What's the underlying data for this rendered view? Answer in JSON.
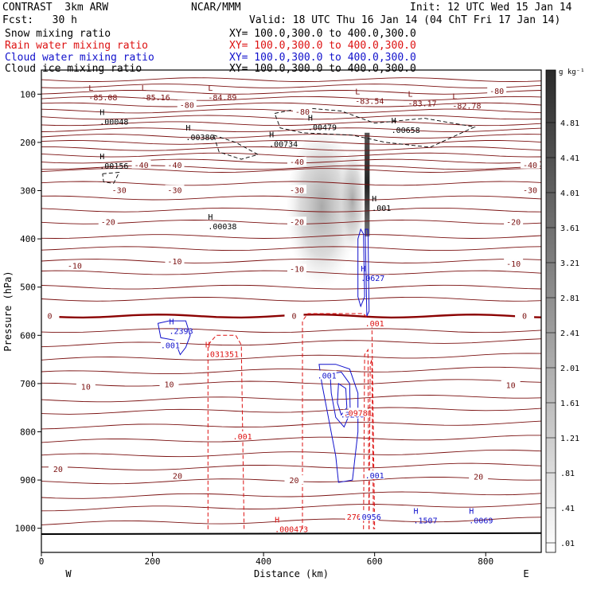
{
  "header": {
    "title": "CONTRAST  3km ARW",
    "org": "NCAR/MMM",
    "init": "Init: 12 UTC Wed 15 Jan 14",
    "fcst": "Fcst:   30 h",
    "valid": "Valid: 18 UTC Thu 16 Jan 14 (04 ChT Fri 17 Jan 14)",
    "fields": [
      {
        "label": "Snow mixing ratio",
        "xy": "XY= 100.0,300.0 to 400.0,300.0",
        "color": "#000000"
      },
      {
        "label": "Rain water mixing ratio",
        "xy": "XY= 100.0,300.0 to 400.0,300.0",
        "color": "#dd1111"
      },
      {
        "label": "Cloud water mixing ratio",
        "xy": "XY= 100.0,300.0 to 400.0,300.0",
        "color": "#1111cc"
      },
      {
        "label": "Cloud ice mixing ratio",
        "xy": "XY= 100.0,300.0 to 400.0,300.0",
        "color": "#000000"
      }
    ]
  },
  "colors": {
    "temperature_contour": "#7a1010",
    "freezing_line": "#8b0000",
    "rain": "#dd1111",
    "cloud_water": "#1111cc",
    "ice": "#000000"
  },
  "chart_data": {
    "type": "heatmap",
    "xlabel": "Distance (km)",
    "ylabel": "Pressure (hPa)",
    "xlim": [
      0,
      900
    ],
    "ylim": [
      1050,
      50
    ],
    "x_ticks": [
      0,
      200,
      400,
      600,
      800
    ],
    "x_tick_labels": [
      "0",
      "200",
      "400",
      "600",
      "800"
    ],
    "y_ticks": [
      100,
      200,
      300,
      400,
      500,
      600,
      700,
      800,
      900,
      1000
    ],
    "y_tick_labels": [
      "100",
      "200",
      "300",
      "400",
      "500",
      "600",
      "700",
      "800",
      "900",
      "1000"
    ],
    "x_end_labels": {
      "left": "W",
      "right": "E"
    },
    "colorbar": {
      "unit": "g kg⁻¹",
      "labels": [
        "4.81",
        "4.41",
        "4.01",
        "3.61",
        "3.21",
        "2.81",
        "2.41",
        "2.01",
        "1.61",
        "1.21",
        ".81",
        ".41",
        ".01"
      ]
    },
    "extremum_labels": [
      {
        "kind": "L",
        "text": "-85.08",
        "x": 85,
        "p": 108
      },
      {
        "kind": "L",
        "text": "-85.16",
        "x": 180,
        "p": 108
      },
      {
        "kind": "L",
        "text": "-84.89",
        "x": 300,
        "p": 108
      },
      {
        "kind": "L",
        "text": "-83.54",
        "x": 565,
        "p": 115
      },
      {
        "kind": "L",
        "text": "-83.17",
        "x": 660,
        "p": 120
      },
      {
        "kind": "L",
        "text": "-82.78",
        "x": 740,
        "p": 125
      },
      {
        "kind": "H",
        "text": ".00048",
        "x": 105,
        "p": 158
      },
      {
        "kind": "H",
        "text": ".00479",
        "x": 480,
        "p": 170
      },
      {
        "kind": "H",
        "text": ".00658",
        "x": 630,
        "p": 175
      },
      {
        "kind": "H",
        "text": ".00380",
        "x": 260,
        "p": 190
      },
      {
        "kind": "H",
        "text": ".00734",
        "x": 410,
        "p": 204
      },
      {
        "kind": "H",
        "text": ".00156",
        "x": 105,
        "p": 250
      },
      {
        "kind": "H",
        "text": ".00038",
        "x": 300,
        "p": 375
      },
      {
        "kind": "H",
        "text": ".001",
        "x": 595,
        "p": 337
      },
      {
        "kind": "H",
        "text": ".0627",
        "x": 575,
        "p": 482
      },
      {
        "kind": "H",
        "text": ".2393",
        "x": 230,
        "p": 592
      },
      {
        "kind": "H",
        "text": ".031351",
        "x": 295,
        "p": 640
      },
      {
        "kind": "H",
        "text": ".000473",
        "x": 420,
        "p": 1003
      },
      {
        "kind": "H",
        "text": ".1507",
        "x": 670,
        "p": 985
      },
      {
        "kind": "H",
        "text": ".0069",
        "x": 770,
        "p": 985
      }
    ],
    "contour_labels": [
      {
        "text": "-80",
        "x": 262,
        "p": 122
      },
      {
        "text": "-80",
        "x": 470,
        "p": 136
      },
      {
        "text": "-80",
        "x": 820,
        "p": 93
      },
      {
        "text": "-40",
        "x": 180,
        "p": 246
      },
      {
        "text": "-40",
        "x": 240,
        "p": 246
      },
      {
        "text": "-40",
        "x": 460,
        "p": 240
      },
      {
        "text": "-40",
        "x": 880,
        "p": 246
      },
      {
        "text": "-30",
        "x": 140,
        "p": 298
      },
      {
        "text": "-30",
        "x": 240,
        "p": 298
      },
      {
        "text": "-30",
        "x": 460,
        "p": 298
      },
      {
        "text": "-30",
        "x": 880,
        "p": 298
      },
      {
        "text": "-20",
        "x": 120,
        "p": 364
      },
      {
        "text": "-20",
        "x": 460,
        "p": 364
      },
      {
        "text": "-20",
        "x": 850,
        "p": 364
      },
      {
        "text": "-10",
        "x": 60,
        "p": 455
      },
      {
        "text": "-10",
        "x": 240,
        "p": 446
      },
      {
        "text": "-10",
        "x": 460,
        "p": 462
      },
      {
        "text": "-10",
        "x": 850,
        "p": 451
      },
      {
        "text": "0",
        "x": 15,
        "p": 559
      },
      {
        "text": "0",
        "x": 455,
        "p": 559
      },
      {
        "text": "0",
        "x": 870,
        "p": 559
      },
      {
        "text": "10",
        "x": 80,
        "p": 706
      },
      {
        "text": "10",
        "x": 230,
        "p": 701
      },
      {
        "text": "10",
        "x": 845,
        "p": 703
      },
      {
        "text": "20",
        "x": 30,
        "p": 877
      },
      {
        "text": "20",
        "x": 245,
        "p": 891
      },
      {
        "text": "20",
        "x": 455,
        "p": 900
      },
      {
        "text": "20",
        "x": 787,
        "p": 892
      },
      {
        "text": ".001",
        "x": 232,
        "p": 620,
        "color": "cloud"
      },
      {
        "text": ".001",
        "x": 362,
        "p": 809,
        "color": "rain"
      },
      {
        "text": ".001",
        "x": 514,
        "p": 683,
        "color": "cloud"
      },
      {
        "text": ".001",
        "x": 600,
        "p": 575,
        "color": "rain"
      },
      {
        "text": ".001",
        "x": 600,
        "p": 890,
        "color": "cloud"
      },
      {
        "text": ".3260",
        "x": 560,
        "p": 764,
        "color": "cloud"
      },
      {
        "text": ".09781",
        "x": 570,
        "p": 760,
        "color": "rain"
      },
      {
        "text": ".2766",
        "x": 563,
        "p": 976,
        "color": "rain"
      },
      {
        "text": ".0956",
        "x": 590,
        "p": 976,
        "color": "cloud"
      }
    ],
    "temperature_levels_c": [
      -80,
      -40,
      -30,
      -20,
      -10,
      0,
      10,
      20
    ]
  }
}
